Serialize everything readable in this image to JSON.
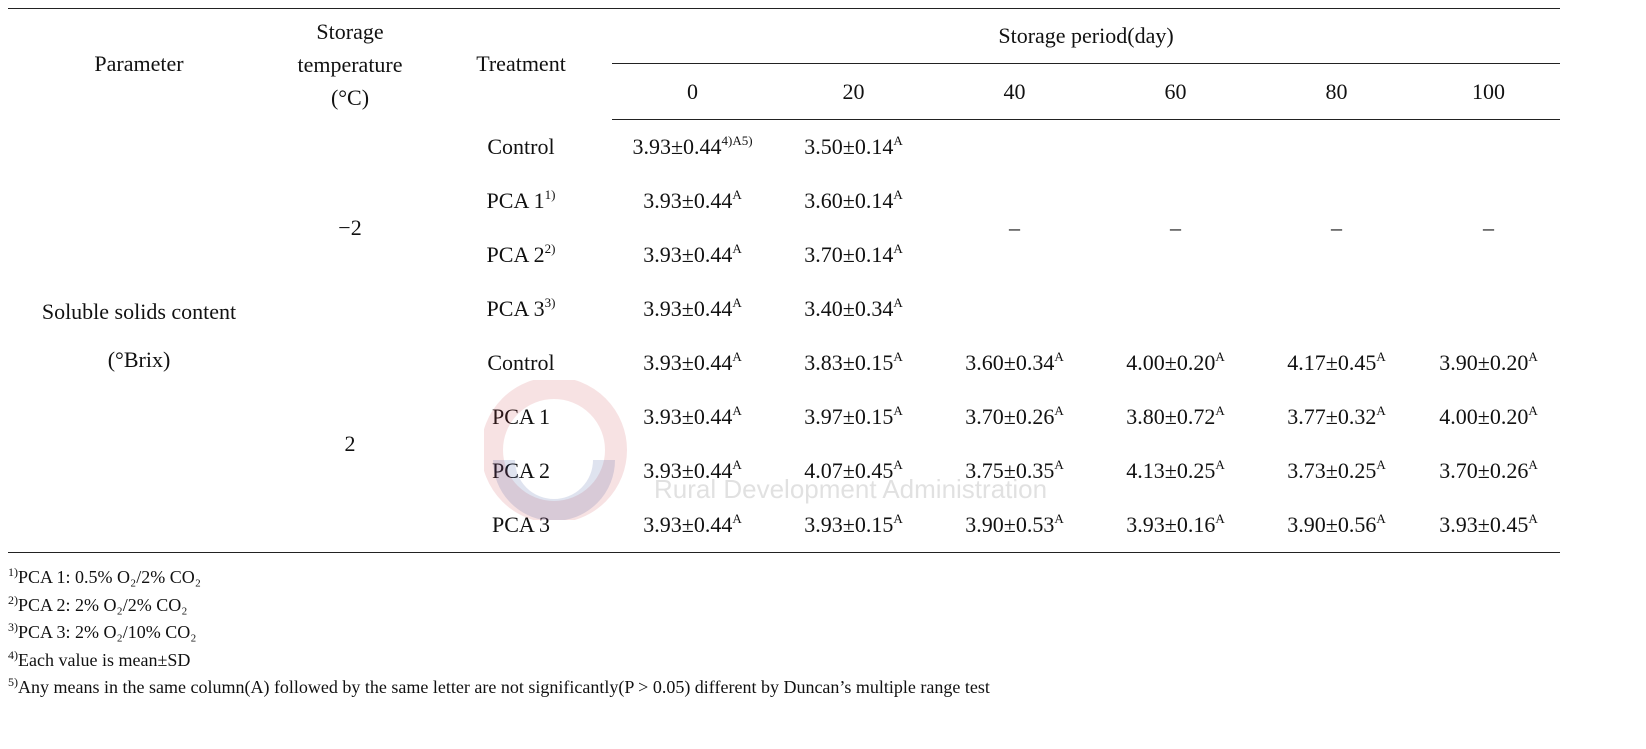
{
  "table": {
    "header": {
      "parameter": "Parameter",
      "storage_temperature": [
        "Storage",
        "temperature",
        "(°C)"
      ],
      "treatment": "Treatment",
      "storage_period": "Storage period(day)",
      "days": [
        0,
        20,
        40,
        60,
        80,
        100
      ]
    },
    "parameter": [
      "Soluble solids content",
      "(°Brix)"
    ],
    "groups": [
      {
        "temperature": "−2",
        "empty_marks": [
          "–",
          "–",
          "–",
          "–"
        ],
        "rows": [
          {
            "treatment": "Control",
            "cells": [
              {
                "text": "3.93±0.44",
                "sup": "4)A5)"
              },
              {
                "text": "3.50±0.14",
                "sup": "A"
              }
            ]
          },
          {
            "treatment": "PCA 1",
            "treatment_sup": "1)",
            "cells": [
              {
                "text": "3.93±0.44",
                "sup": "A"
              },
              {
                "text": "3.60±0.14",
                "sup": "A"
              }
            ]
          },
          {
            "treatment": "PCA 2",
            "treatment_sup": "2)",
            "cells": [
              {
                "text": "3.93±0.44",
                "sup": "A"
              },
              {
                "text": "3.70±0.14",
                "sup": "A"
              }
            ]
          },
          {
            "treatment": "PCA 3",
            "treatment_sup": "3)",
            "cells": [
              {
                "text": "3.93±0.44",
                "sup": "A"
              },
              {
                "text": "3.40±0.34",
                "sup": "A"
              }
            ]
          }
        ]
      },
      {
        "temperature": "2",
        "rows": [
          {
            "treatment": "Control",
            "cells": [
              {
                "text": "3.93±0.44",
                "sup": "A"
              },
              {
                "text": "3.83±0.15",
                "sup": "A"
              },
              {
                "text": "3.60±0.34",
                "sup": "A"
              },
              {
                "text": "4.00±0.20",
                "sup": "A"
              },
              {
                "text": "4.17±0.45",
                "sup": "A"
              },
              {
                "text": "3.90±0.20",
                "sup": "A"
              }
            ]
          },
          {
            "treatment": "PCA 1",
            "cells": [
              {
                "text": "3.93±0.44",
                "sup": "A"
              },
              {
                "text": "3.97±0.15",
                "sup": "A"
              },
              {
                "text": "3.70±0.26",
                "sup": "A"
              },
              {
                "text": "3.80±0.72",
                "sup": "A"
              },
              {
                "text": "3.77±0.32",
                "sup": "A"
              },
              {
                "text": "4.00±0.20",
                "sup": "A"
              }
            ]
          },
          {
            "treatment": "PCA 2",
            "cells": [
              {
                "text": "3.93±0.44",
                "sup": "A"
              },
              {
                "text": "4.07±0.45",
                "sup": "A"
              },
              {
                "text": "3.75±0.35",
                "sup": "A"
              },
              {
                "text": "4.13±0.25",
                "sup": "A"
              },
              {
                "text": "3.73±0.25",
                "sup": "A"
              },
              {
                "text": "3.70±0.26",
                "sup": "A"
              }
            ]
          },
          {
            "treatment": "PCA 3",
            "cells": [
              {
                "text": "3.93±0.44",
                "sup": "A"
              },
              {
                "text": "3.93±0.15",
                "sup": "A"
              },
              {
                "text": "3.90±0.53",
                "sup": "A"
              },
              {
                "text": "3.93±0.16",
                "sup": "A"
              },
              {
                "text": "3.90±0.56",
                "sup": "A"
              },
              {
                "text": "3.93±0.45",
                "sup": "A"
              }
            ]
          }
        ]
      }
    ]
  },
  "footnotes": [
    {
      "mark": "1)",
      "text": "PCA 1: 0.5% O₂/2% CO₂"
    },
    {
      "mark": "2)",
      "text": "PCA 2: 2% O₂/2% CO₂"
    },
    {
      "mark": "3)",
      "text": "PCA 3: 2% O₂/10% CO₂"
    },
    {
      "mark": "4)",
      "text": "Each value is mean±SD"
    },
    {
      "mark": "5)",
      "text": "Any means in the same column(A) followed by the same letter are not significantly(P > 0.05) different by Duncan’s multiple range test"
    }
  ],
  "watermark": {
    "english": "Rural Development Administration"
  }
}
